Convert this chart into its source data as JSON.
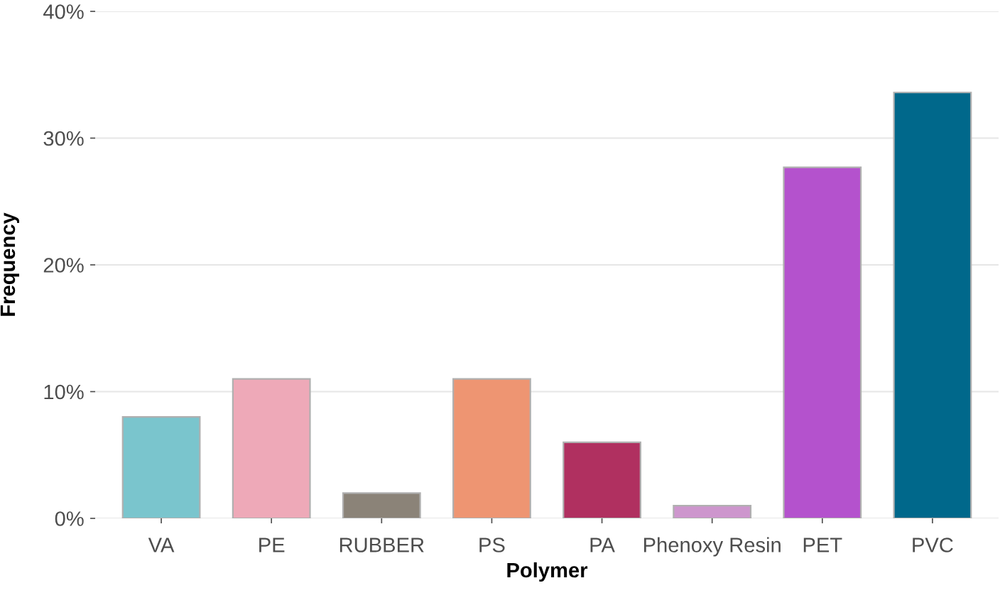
{
  "chart_data": {
    "type": "bar",
    "xlabel": "Polymer",
    "ylabel": "Frequency",
    "categories": [
      "VA",
      "PE",
      "RUBBER",
      "PS",
      "PA",
      "Phenoxy Resin",
      "PET",
      "PVC"
    ],
    "values": [
      8,
      11,
      2,
      11,
      6,
      1,
      27.7,
      33.6
    ],
    "colors": [
      "#7ac5cd",
      "#eea9b8",
      "#8b8378",
      "#ee9572",
      "#b03060",
      "#cd96cd",
      "#b452cd",
      "#00688b"
    ],
    "ylim": [
      0,
      40
    ],
    "yticks": [
      {
        "value": 0,
        "label": "0%"
      },
      {
        "value": 10,
        "label": "10%"
      },
      {
        "value": 20,
        "label": "20%"
      },
      {
        "value": 30,
        "label": "30%"
      },
      {
        "value": 40,
        "label": "40%"
      }
    ],
    "grid": "y"
  }
}
